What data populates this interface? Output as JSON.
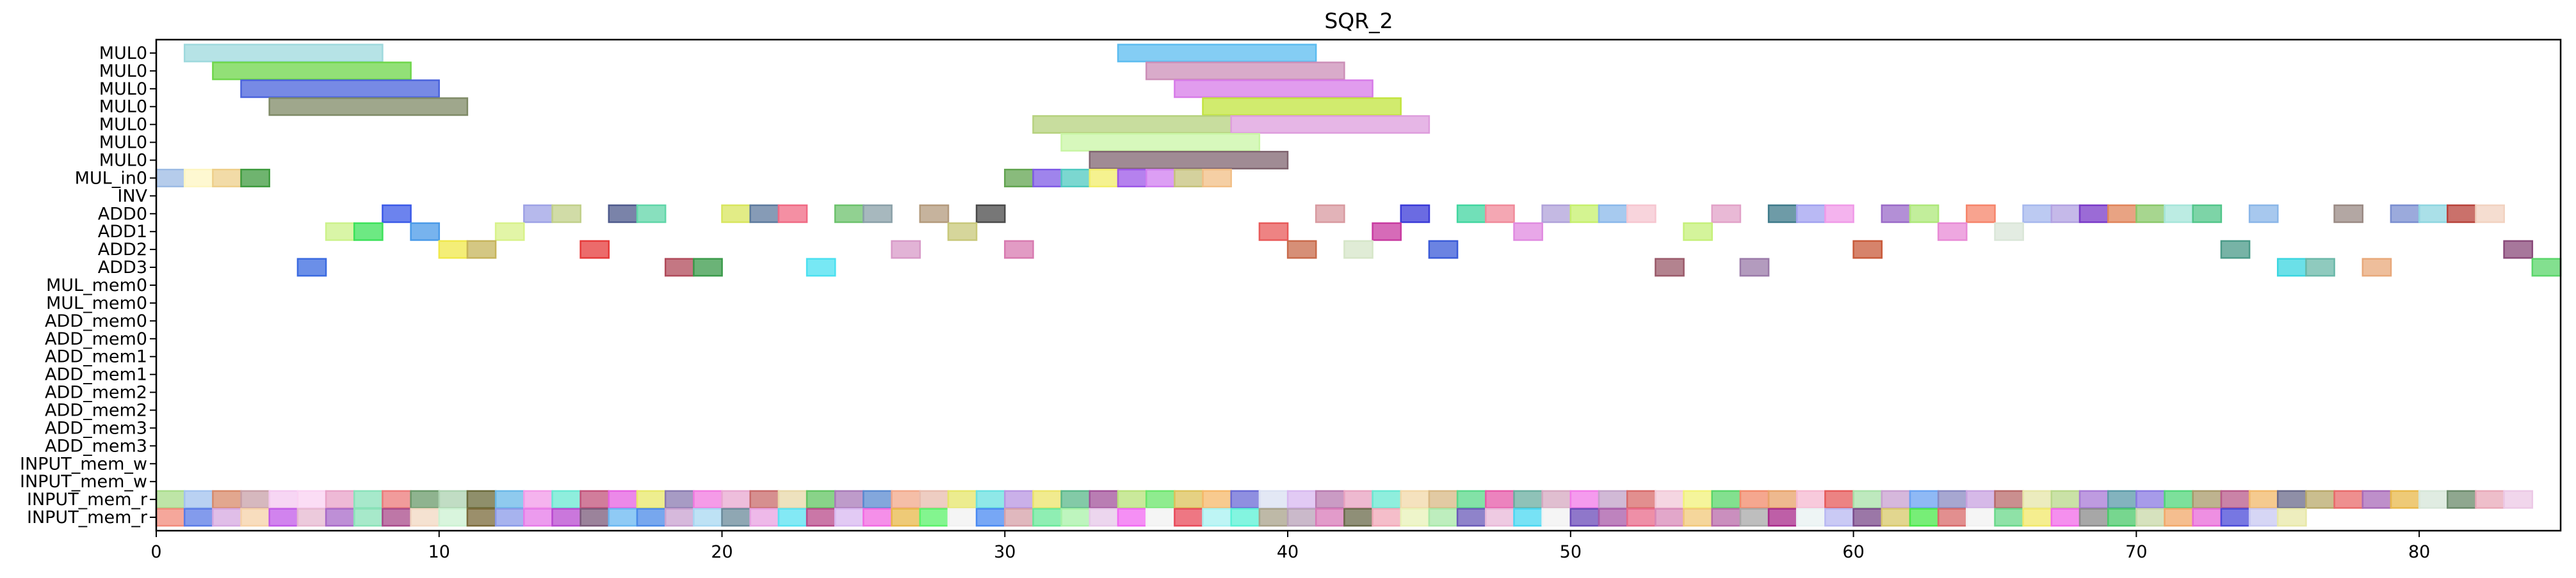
{
  "chart_data": {
    "type": "gantt",
    "title": "SQR_2",
    "xlim": [
      0,
      85
    ],
    "x_ticks": [
      0,
      10,
      20,
      30,
      40,
      50,
      60,
      70,
      80
    ],
    "x_tick_labels": [
      "0",
      "10",
      "20",
      "30",
      "40",
      "50",
      "60",
      "70",
      "80"
    ],
    "rows": [
      "MUL0",
      "MUL0",
      "MUL0",
      "MUL0",
      "MUL0",
      "MUL0",
      "MUL0",
      "MUL_in0",
      "INV",
      "ADD0",
      "ADD1",
      "ADD2",
      "ADD3",
      "MUL_mem0",
      "MUL_mem0",
      "ADD_mem0",
      "ADD_mem0",
      "ADD_mem1",
      "ADD_mem1",
      "ADD_mem2",
      "ADD_mem2",
      "ADD_mem3",
      "ADD_mem3",
      "INPUT_mem_w",
      "INPUT_mem_w",
      "INPUT_mem_r",
      "INPUT_mem_r"
    ],
    "tasks": [
      {
        "row": 0,
        "start": 1,
        "end": 8,
        "color": "#9ed9dd"
      },
      {
        "row": 0,
        "start": 34,
        "end": 41,
        "color": "#5bbcf0"
      },
      {
        "row": 1,
        "start": 2,
        "end": 9,
        "color": "#6ed64a"
      },
      {
        "row": 1,
        "start": 35,
        "end": 42,
        "color": "#cc8fb8"
      },
      {
        "row": 2,
        "start": 3,
        "end": 10,
        "color": "#4a63dc"
      },
      {
        "row": 2,
        "start": 36,
        "end": 43,
        "color": "#d77be8"
      },
      {
        "row": 3,
        "start": 4,
        "end": 11,
        "color": "#7f8a66"
      },
      {
        "row": 3,
        "start": 37,
        "end": 44,
        "color": "#c2e43e"
      },
      {
        "row": 4,
        "start": 31,
        "end": 38,
        "color": "#b6d27e"
      },
      {
        "row": 4,
        "start": 38,
        "end": 45,
        "color": "#de9ddd"
      },
      {
        "row": 5,
        "start": 32,
        "end": 39,
        "color": "#c9f5a5"
      },
      {
        "row": 6,
        "start": 33,
        "end": 40,
        "color": "#806470"
      },
      {
        "row": 7,
        "start": 0,
        "end": 1,
        "color": "#9cbbe4"
      },
      {
        "row": 7,
        "start": 1,
        "end": 2,
        "color": "#fdf6c2"
      },
      {
        "row": 7,
        "start": 2,
        "end": 3,
        "color": "#eecf8a"
      },
      {
        "row": 7,
        "start": 3,
        "end": 4,
        "color": "#3f9b3f"
      },
      {
        "row": 7,
        "start": 30,
        "end": 31,
        "color": "#62a450"
      },
      {
        "row": 7,
        "start": 31,
        "end": 32,
        "color": "#7f5be6"
      },
      {
        "row": 7,
        "start": 32,
        "end": 33,
        "color": "#4fc9c0"
      },
      {
        "row": 7,
        "start": 33,
        "end": 34,
        "color": "#f2ee6a"
      },
      {
        "row": 7,
        "start": 34,
        "end": 35,
        "color": "#9c57e8"
      },
      {
        "row": 7,
        "start": 35,
        "end": 36,
        "color": "#d07ef0"
      },
      {
        "row": 7,
        "start": 36,
        "end": 37,
        "color": "#c6c27c"
      },
      {
        "row": 7,
        "start": 37,
        "end": 38,
        "color": "#f2bf86"
      },
      {
        "row": 9,
        "start": 8,
        "end": 9,
        "color": "#3b5ae8"
      },
      {
        "row": 9,
        "start": 13,
        "end": 14,
        "color": "#9ea2e6"
      },
      {
        "row": 9,
        "start": 14,
        "end": 15,
        "color": "#c1d08a"
      },
      {
        "row": 9,
        "start": 16,
        "end": 17,
        "color": "#4e5a8c"
      },
      {
        "row": 9,
        "start": 17,
        "end": 18,
        "color": "#60d6a8"
      },
      {
        "row": 9,
        "start": 20,
        "end": 21,
        "color": "#d8e65e"
      },
      {
        "row": 9,
        "start": 21,
        "end": 22,
        "color": "#5d7a9e"
      },
      {
        "row": 9,
        "start": 22,
        "end": 23,
        "color": "#f06a84"
      },
      {
        "row": 9,
        "start": 24,
        "end": 25,
        "color": "#6cc26c"
      },
      {
        "row": 9,
        "start": 25,
        "end": 26,
        "color": "#8aa0a8"
      },
      {
        "row": 9,
        "start": 27,
        "end": 28,
        "color": "#b39a7c"
      },
      {
        "row": 9,
        "start": 29,
        "end": 30,
        "color": "#4a4a4a"
      },
      {
        "row": 9,
        "start": 41,
        "end": 42,
        "color": "#d89aa0"
      },
      {
        "row": 9,
        "start": 44,
        "end": 45,
        "color": "#3a3ad8"
      },
      {
        "row": 9,
        "start": 46,
        "end": 47,
        "color": "#42d6a0"
      },
      {
        "row": 9,
        "start": 47,
        "end": 48,
        "color": "#f08a9a"
      },
      {
        "row": 9,
        "start": 49,
        "end": 50,
        "color": "#b0a2da"
      },
      {
        "row": 9,
        "start": 50,
        "end": 51,
        "color": "#c6f06c"
      },
      {
        "row": 9,
        "start": 51,
        "end": 52,
        "color": "#8ab8ea"
      },
      {
        "row": 9,
        "start": 52,
        "end": 53,
        "color": "#f6c6d0"
      },
      {
        "row": 9,
        "start": 55,
        "end": 56,
        "color": "#e2a2c8"
      },
      {
        "row": 9,
        "start": 57,
        "end": 58,
        "color": "#3e7a8a"
      },
      {
        "row": 9,
        "start": 58,
        "end": 59,
        "color": "#a2a2f0"
      },
      {
        "row": 9,
        "start": 59,
        "end": 60,
        "color": "#f09ae8"
      },
      {
        "row": 9,
        "start": 61,
        "end": 62,
        "color": "#9a6ac8"
      },
      {
        "row": 9,
        "start": 62,
        "end": 63,
        "color": "#aee87a"
      },
      {
        "row": 9,
        "start": 64,
        "end": 65,
        "color": "#f6846a"
      },
      {
        "row": 9,
        "start": 66,
        "end": 67,
        "color": "#a6b8ee"
      },
      {
        "row": 9,
        "start": 67,
        "end": 68,
        "color": "#b2a2e2"
      },
      {
        "row": 9,
        "start": 68,
        "end": 69,
        "color": "#7a3ac8"
      },
      {
        "row": 9,
        "start": 69,
        "end": 70,
        "color": "#e0845a"
      },
      {
        "row": 9,
        "start": 70,
        "end": 71,
        "color": "#8ac86a"
      },
      {
        "row": 9,
        "start": 71,
        "end": 72,
        "color": "#a6e6da"
      },
      {
        "row": 9,
        "start": 72,
        "end": 73,
        "color": "#52c68a"
      },
      {
        "row": 9,
        "start": 74,
        "end": 75,
        "color": "#8ab6e8"
      },
      {
        "row": 9,
        "start": 77,
        "end": 78,
        "color": "#9a8a84"
      },
      {
        "row": 9,
        "start": 79,
        "end": 80,
        "color": "#7a8ed0"
      },
      {
        "row": 9,
        "start": 80,
        "end": 81,
        "color": "#8ed6e0"
      },
      {
        "row": 9,
        "start": 81,
        "end": 82,
        "color": "#b8423a"
      },
      {
        "row": 9,
        "start": 82,
        "end": 83,
        "color": "#f2d2c0"
      },
      {
        "row": 10,
        "start": 6,
        "end": 7,
        "color": "#ccf28a"
      },
      {
        "row": 10,
        "start": 7,
        "end": 8,
        "color": "#3ce25a"
      },
      {
        "row": 10,
        "start": 9,
        "end": 10,
        "color": "#4a9ae8"
      },
      {
        "row": 10,
        "start": 12,
        "end": 13,
        "color": "#d8f28a"
      },
      {
        "row": 10,
        "start": 28,
        "end": 29,
        "color": "#c8c87a"
      },
      {
        "row": 10,
        "start": 39,
        "end": 40,
        "color": "#e85a5a"
      },
      {
        "row": 10,
        "start": 43,
        "end": 44,
        "color": "#c83aa0"
      },
      {
        "row": 10,
        "start": 48,
        "end": 49,
        "color": "#e08ae0"
      },
      {
        "row": 10,
        "start": 54,
        "end": 55,
        "color": "#c6f07a"
      },
      {
        "row": 10,
        "start": 63,
        "end": 64,
        "color": "#e88ad6"
      },
      {
        "row": 10,
        "start": 65,
        "end": 66,
        "color": "#dae6d8"
      },
      {
        "row": 11,
        "start": 10,
        "end": 11,
        "color": "#f0e84a"
      },
      {
        "row": 11,
        "start": 11,
        "end": 12,
        "color": "#c6b45a"
      },
      {
        "row": 11,
        "start": 15,
        "end": 16,
        "color": "#e63a3a"
      },
      {
        "row": 11,
        "start": 26,
        "end": 27,
        "color": "#d89ac8"
      },
      {
        "row": 11,
        "start": 30,
        "end": 31,
        "color": "#d87ab0"
      },
      {
        "row": 11,
        "start": 40,
        "end": 41,
        "color": "#c86a4a"
      },
      {
        "row": 11,
        "start": 42,
        "end": 43,
        "color": "#d6e6c8"
      },
      {
        "row": 11,
        "start": 45,
        "end": 46,
        "color": "#3a5ad8"
      },
      {
        "row": 11,
        "start": 60,
        "end": 61,
        "color": "#c85a3a"
      },
      {
        "row": 11,
        "start": 73,
        "end": 74,
        "color": "#4a9a88"
      },
      {
        "row": 11,
        "start": 83,
        "end": 84,
        "color": "#8a4a7a"
      },
      {
        "row": 12,
        "start": 5,
        "end": 6,
        "color": "#3a6ae0"
      },
      {
        "row": 12,
        "start": 18,
        "end": 19,
        "color": "#b04a5a"
      },
      {
        "row": 12,
        "start": 19,
        "end": 20,
        "color": "#3a9a4a"
      },
      {
        "row": 12,
        "start": 23,
        "end": 24,
        "color": "#4ae0f0"
      },
      {
        "row": 12,
        "start": 53,
        "end": 54,
        "color": "#9a5a6a"
      },
      {
        "row": 12,
        "start": 56,
        "end": 57,
        "color": "#9a7aa8"
      },
      {
        "row": 12,
        "start": 75,
        "end": 76,
        "color": "#3ad6e0"
      },
      {
        "row": 12,
        "start": 76,
        "end": 77,
        "color": "#6ab8a8"
      },
      {
        "row": 12,
        "start": 78,
        "end": 79,
        "color": "#e8a87a"
      },
      {
        "row": 12,
        "start": 84,
        "end": 85,
        "color": "#5ad66a"
      }
    ],
    "input_rows": {
      "r1_start": 0,
      "r1_colors": [
        "#a8dc8a",
        "#a2c2ee",
        "#d88a6a",
        "#c8a0a8",
        "#f4c8f0",
        "#fad2f2",
        "#e8a2c8",
        "#8ae2ba",
        "#ec7a7a",
        "#6a9a6a",
        "#acd2b0",
        "#6a6a3a",
        "#6ab8e8",
        "#f29ae8",
        "#6ae8d2",
        "#c2527a",
        "#e662e2",
        "#e8e86a",
        "#8a7ab0",
        "#f27ae0",
        "#e8a8d0",
        "#c86a6a",
        "#e8d8a8",
        "#62c462",
        "#a87ab8",
        "#5a8ad0",
        "#f2a88a",
        "#e8bcae",
        "#e6e66a",
        "#6ae0e0",
        "#b896e2",
        "#ece46a",
        "#5ab88a",
        "#a2529a",
        "#b8e27a",
        "#6ae66a",
        "#dcc25a",
        "#f6b86a",
        "#6a6ad6",
        "#dae0f2",
        "#d8b8f0",
        "#b87ab0",
        "#e8a2c0",
        "#6ae8d2",
        "#f2d8a8",
        "#d8b884",
        "#5ad88a",
        "#e65aa8",
        "#6aaea0",
        "#d6a8c0",
        "#f27ae8",
        "#c2a2c8",
        "#d86a6a",
        "#f2c8d8",
        "#f2f27a",
        "#5ad66a",
        "#f28a6a",
        "#e8a26a",
        "#f6b8d0",
        "#e65a5a",
        "#a8e2a8",
        "#c8a0d0",
        "#6aa2f2",
        "#8a8ac2",
        "#c8a2e0",
        "#b86a6a",
        "#e6e6a8",
        "#b8d88a",
        "#a87ad6",
        "#5a9aa8",
        "#8a7ae2",
        "#52d67a",
        "#a89a6a",
        "#b85a8a",
        "#f2b86a",
        "#6a6a8a",
        "#b8a86a",
        "#e86a6a",
        "#a86ab8",
        "#e8b84a",
        "#d6e6d8",
        "#6a8a6a",
        "#e8a8b8",
        "#ecc8e6"
      ],
      "r2_start": 0,
      "r2_colors": [
        "#f28a7a",
        "#5a7ae6",
        "#d6a8e0",
        "#f6d2a8",
        "#c25ae8",
        "#e6b8d0",
        "#a86ac8",
        "#8ae2b8",
        "#a84a8a",
        "#f2d8c2",
        "#ccf2d2",
        "#7a6a3a",
        "#8a9ae8",
        "#e67ae8",
        "#b84ad0",
        "#7a5a7a",
        "#6ab8f2",
        "#4a8ae8",
        "#c8a2d0",
        "#a8d8f2",
        "#6a8a9a",
        "#e8a2e2",
        "#5ae2f2",
        "#b84a8a",
        "#d8b8f0",
        "#f26ae2",
        "#e8b84a",
        "#5af26a",
        "#f2f2f2",
        "#4a8af2",
        "#d6a0a8",
        "#6ae89a",
        "#a8f2a8",
        "#e6c8e8",
        "#f26af2",
        "#f2f2f2",
        "#e84a5a",
        "#a8f2f2",
        "#5af2d6",
        "#a8a28a",
        "#b8a2b8",
        "#d87ab8",
        "#6a6a4a",
        "#f2a8b8",
        "#e8f2b8",
        "#a8e8a8",
        "#6a5ab8",
        "#e8b8d8",
        "#4ad8f2",
        "#f2f2f2",
        "#6a4ab8",
        "#a85aa8",
        "#e86a8a",
        "#d88ab8",
        "#f2c87a",
        "#b86aa8",
        "#a8a8a8",
        "#a82a8a",
        "#e8f2f2",
        "#b8b8f2",
        "#7a4a8a",
        "#d8c86a",
        "#4ae84a",
        "#d86a6a",
        "#f2f2f2",
        "#6ad88a",
        "#f2e86a",
        "#f26ae8",
        "#8a8a8a",
        "#4ac86a",
        "#c8d8a8",
        "#f2a86a",
        "#e86ad8",
        "#4a4ad8",
        "#c8c8f2",
        "#e8e8a8"
      ]
    }
  }
}
